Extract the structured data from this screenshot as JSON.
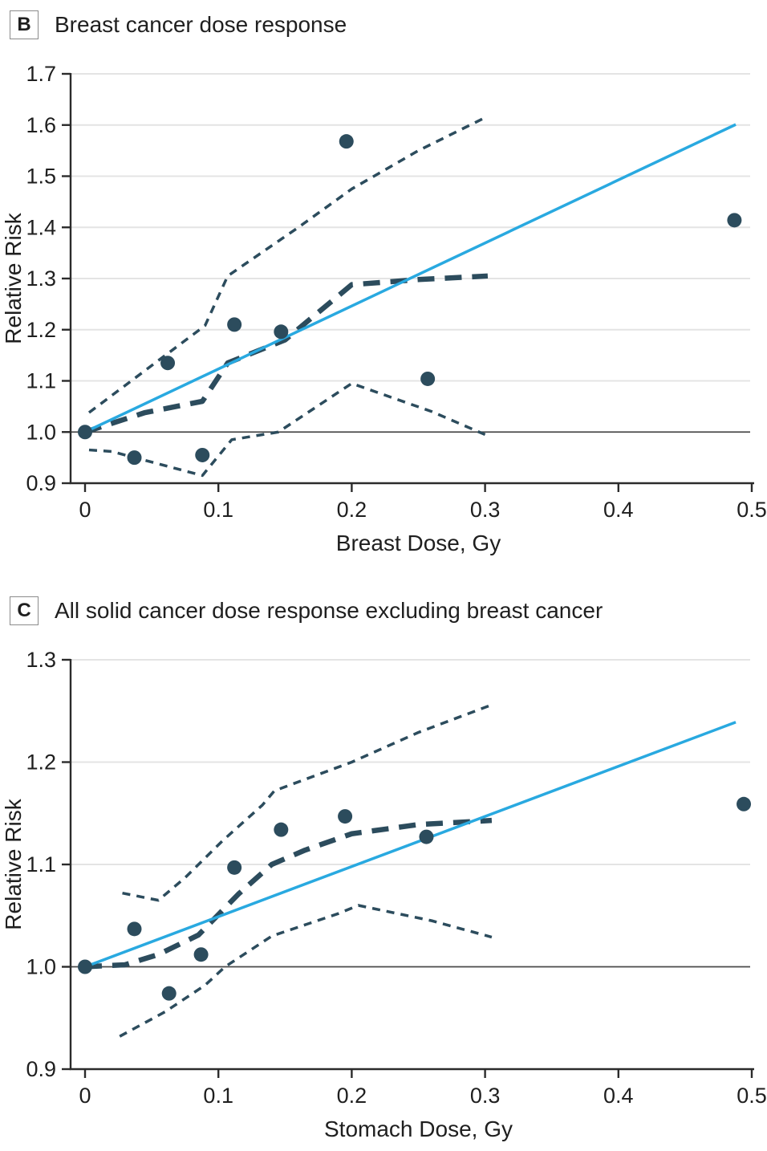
{
  "colors": {
    "dark_teal": "#2c4c5d",
    "blue_line": "#29a9e0",
    "grid": "#e4e4e4",
    "axis": "#2b2b2b",
    "reference_line": "#4a4a4a"
  },
  "panels": [
    {
      "label": "B",
      "title": "Breast cancer dose response"
    },
    {
      "label": "C",
      "title": "All solid cancer dose response excluding breast cancer"
    }
  ],
  "chart_data": [
    {
      "name": "breast-cancer-dose-response",
      "type": "scatter",
      "title": "Breast cancer dose response",
      "xlabel": "Breast Dose, Gy",
      "ylabel": "Relative Risk",
      "xlim": [
        0,
        0.5
      ],
      "ylim": [
        0.9,
        1.7
      ],
      "xticks": [
        0,
        0.1,
        0.2,
        0.3,
        0.4,
        0.5
      ],
      "xticklabels": [
        "0",
        "0.1",
        "0.2",
        "0.3",
        "0.4",
        "0.5"
      ],
      "yticks": [
        0.9,
        1.0,
        1.1,
        1.2,
        1.3,
        1.4,
        1.5,
        1.6,
        1.7
      ],
      "yticklabels": [
        "0.9",
        "1.0",
        "1.1",
        "1.2",
        "1.3",
        "1.4",
        "1.5",
        "1.6",
        "1.7"
      ],
      "grid": "horizontal",
      "legend": "none",
      "reference_line_y": 1.0,
      "series": [
        {
          "name": "observed_relative_risk",
          "style": "points",
          "marker": "circle",
          "x": [
            0,
            0.037,
            0.062,
            0.088,
            0.112,
            0.147,
            0.196,
            0.257,
            0.487
          ],
          "y": [
            1.0,
            0.95,
            1.135,
            0.955,
            1.21,
            1.196,
            1.568,
            1.104,
            1.414
          ]
        },
        {
          "name": "linear_fit",
          "style": "solid-blue",
          "x": [
            0,
            0.488
          ],
          "y": [
            1.0,
            1.601
          ]
        },
        {
          "name": "smoothed_fit",
          "style": "dashed-thick",
          "x": [
            0,
            0.045,
            0.088,
            0.107,
            0.15,
            0.2,
            0.25,
            0.302
          ],
          "y": [
            1.0,
            1.038,
            1.06,
            1.135,
            1.18,
            1.288,
            1.298,
            1.305
          ]
        },
        {
          "name": "ci_upper",
          "style": "dashed-thin",
          "x": [
            0.003,
            0.05,
            0.09,
            0.107,
            0.16,
            0.2,
            0.25,
            0.302
          ],
          "y": [
            1.038,
            1.13,
            1.208,
            1.305,
            1.4,
            1.475,
            1.55,
            1.617
          ]
        },
        {
          "name": "ci_lower",
          "style": "dashed-thin",
          "x": [
            0.003,
            0.02,
            0.088,
            0.11,
            0.145,
            0.2,
            0.26,
            0.3
          ],
          "y": [
            0.965,
            0.962,
            0.915,
            0.985,
            1.0,
            1.095,
            1.04,
            0.995
          ]
        }
      ]
    },
    {
      "name": "all-solid-cancer-dose-response",
      "type": "scatter",
      "title": "All solid cancer dose response excluding breast cancer",
      "xlabel": "Stomach Dose, Gy",
      "ylabel": "Relative Risk",
      "xlim": [
        0,
        0.5
      ],
      "ylim": [
        0.9,
        1.3
      ],
      "xticks": [
        0,
        0.1,
        0.2,
        0.3,
        0.4,
        0.5
      ],
      "xticklabels": [
        "0",
        "0.1",
        "0.2",
        "0.3",
        "0.4",
        "0.5"
      ],
      "yticks": [
        0.9,
        1.0,
        1.1,
        1.2,
        1.3
      ],
      "yticklabels": [
        "0.9",
        "1.0",
        "1.1",
        "1.2",
        "1.3"
      ],
      "grid": "horizontal",
      "legend": "none",
      "reference_line_y": 1.0,
      "series": [
        {
          "name": "observed_relative_risk",
          "style": "points",
          "marker": "circle",
          "x": [
            0,
            0.037,
            0.063,
            0.087,
            0.112,
            0.147,
            0.195,
            0.256,
            0.494
          ],
          "y": [
            1.0,
            1.037,
            0.974,
            1.012,
            1.097,
            1.134,
            1.147,
            1.127,
            1.159
          ]
        },
        {
          "name": "linear_fit",
          "style": "solid-blue",
          "x": [
            0,
            0.488
          ],
          "y": [
            1.0,
            1.239
          ]
        },
        {
          "name": "smoothed_fit",
          "style": "dashed-thick",
          "x": [
            0,
            0.03,
            0.055,
            0.085,
            0.115,
            0.14,
            0.165,
            0.2,
            0.25,
            0.305
          ],
          "y": [
            1.0,
            1.002,
            1.012,
            1.031,
            1.071,
            1.1,
            1.114,
            1.13,
            1.139,
            1.143
          ]
        },
        {
          "name": "ci_upper",
          "style": "dashed-thin",
          "x": [
            0.028,
            0.055,
            0.075,
            0.103,
            0.133,
            0.142,
            0.2,
            0.25,
            0.303
          ],
          "y": [
            1.072,
            1.065,
            1.087,
            1.123,
            1.158,
            1.172,
            1.2,
            1.229,
            1.255
          ]
        },
        {
          "name": "ci_lower",
          "style": "dashed-thin",
          "x": [
            0.026,
            0.06,
            0.09,
            0.105,
            0.14,
            0.19,
            0.205,
            0.26,
            0.305
          ],
          "y": [
            0.932,
            0.956,
            0.982,
            1.0,
            1.03,
            1.052,
            1.06,
            1.045,
            1.029
          ]
        }
      ]
    }
  ]
}
